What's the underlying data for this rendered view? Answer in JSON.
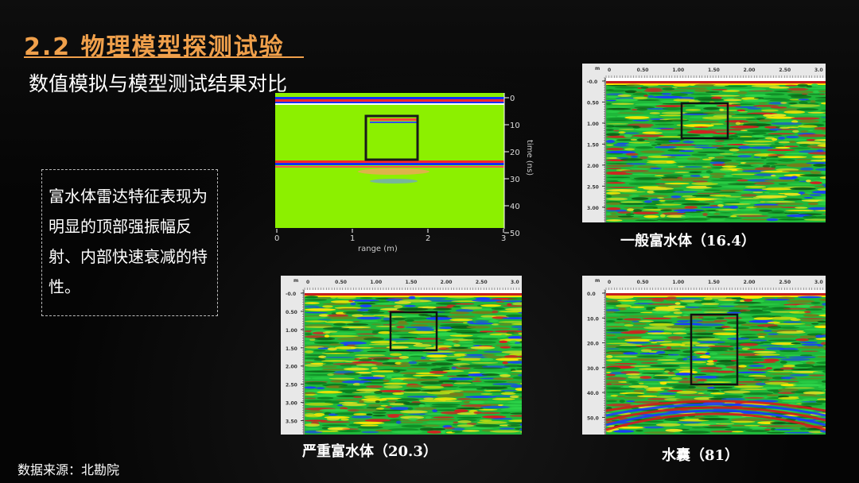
{
  "slide": {
    "title": "2.2 物理模型探测试验",
    "subtitle": "数值模拟与模型测试结果对比",
    "description": "富水体雷达特征表现为明显的顶部强振幅反射、内部快速衰减的特性。",
    "source": "数据来源：北勘院"
  },
  "simulation": {
    "y_ticks": [
      "0",
      "10",
      "20",
      "30",
      "40",
      "50"
    ],
    "x_ticks": [
      "0",
      "1",
      "2",
      "3"
    ],
    "x_label": "range (m)",
    "y_label": "time (ns)"
  },
  "radargrams": {
    "top_ticks": [
      "0",
      "0.50",
      "1.00",
      "1.50",
      "2.00",
      "2.50",
      "3.0"
    ],
    "unit_label": "m",
    "general": {
      "caption": "一般富水体（16.4）",
      "depth_ticks": [
        "-0.0",
        "0.50",
        "1.00",
        "1.50",
        "2.00",
        "2.50",
        "3.00"
      ]
    },
    "severe": {
      "caption": "严重富水体（20.3）",
      "depth_ticks": [
        "-0.0",
        "0.50",
        "1.00",
        "1.50",
        "2.00",
        "2.50",
        "3.00",
        "3.50"
      ]
    },
    "sac": {
      "caption": "水囊（81）",
      "depth_ticks": [
        "0.0",
        "10.0",
        "20.0",
        "30.0",
        "40.0",
        "50.0"
      ]
    }
  },
  "colors": {
    "accent": "#f0a04b",
    "sim_background": "#8cf000",
    "radar_green": "#22c43a"
  }
}
